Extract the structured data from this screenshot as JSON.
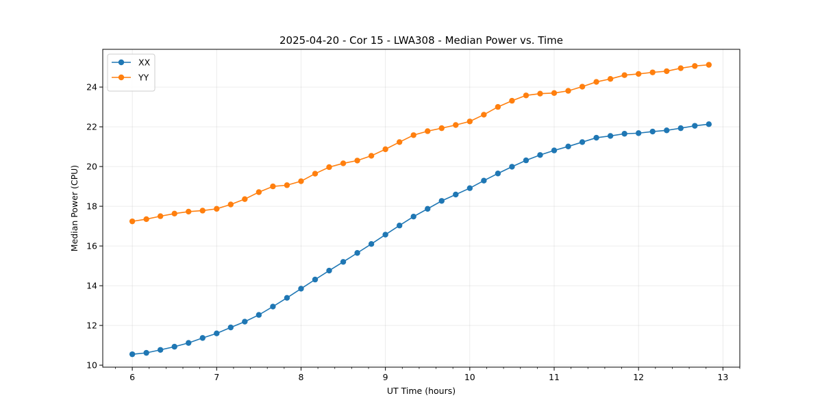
{
  "chart_data": {
    "type": "line",
    "title": "2025-04-20 - Cor 15 - LWA308 - Median Power vs. Time",
    "xlabel": "UT Time (hours)",
    "ylabel": "Median Power (CPU)",
    "xlim": [
      5.65,
      13.2
    ],
    "ylim": [
      9.9,
      25.9
    ],
    "xticks": [
      6,
      7,
      8,
      9,
      10,
      11,
      12,
      13
    ],
    "yticks": [
      10,
      12,
      14,
      16,
      18,
      20,
      22,
      24
    ],
    "x_minor_step": 0.2,
    "grid": true,
    "legend_position": "top-left",
    "x": [
      6.0,
      6.1667,
      6.3333,
      6.5,
      6.6667,
      6.8333,
      7.0,
      7.1667,
      7.3333,
      7.5,
      7.6667,
      7.8333,
      8.0,
      8.1667,
      8.3333,
      8.5,
      8.6667,
      8.8333,
      9.0,
      9.1667,
      9.3333,
      9.5,
      9.6667,
      9.8333,
      10.0,
      10.1667,
      10.3333,
      10.5,
      10.6667,
      10.8333,
      11.0,
      11.1667,
      11.3333,
      11.5,
      11.6667,
      11.8333,
      12.0,
      12.1667,
      12.3333,
      12.5,
      12.6667,
      12.8333
    ],
    "series": [
      {
        "name": "XX",
        "color": "#1f77b4",
        "values": [
          10.55,
          10.62,
          10.77,
          10.93,
          11.12,
          11.37,
          11.6,
          11.9,
          12.19,
          12.53,
          12.95,
          13.39,
          13.85,
          14.31,
          14.76,
          15.2,
          15.65,
          16.1,
          16.57,
          17.03,
          17.48,
          17.87,
          18.27,
          18.59,
          18.91,
          19.29,
          19.65,
          19.99,
          20.31,
          20.58,
          20.81,
          21.01,
          21.23,
          21.45,
          21.54,
          21.65,
          21.68,
          21.76,
          21.82,
          21.93,
          22.05,
          22.13
        ]
      },
      {
        "name": "YY",
        "color": "#ff7f0e",
        "values": [
          17.24,
          17.35,
          17.5,
          17.63,
          17.73,
          17.78,
          17.87,
          18.09,
          18.36,
          18.71,
          19.0,
          19.06,
          19.26,
          19.64,
          19.97,
          20.16,
          20.3,
          20.54,
          20.87,
          21.23,
          21.58,
          21.78,
          21.93,
          22.09,
          22.27,
          22.61,
          23.0,
          23.31,
          23.58,
          23.67,
          23.7,
          23.81,
          24.02,
          24.26,
          24.41,
          24.6,
          24.66,
          24.74,
          24.8,
          24.95,
          25.06,
          25.12
        ]
      }
    ]
  }
}
